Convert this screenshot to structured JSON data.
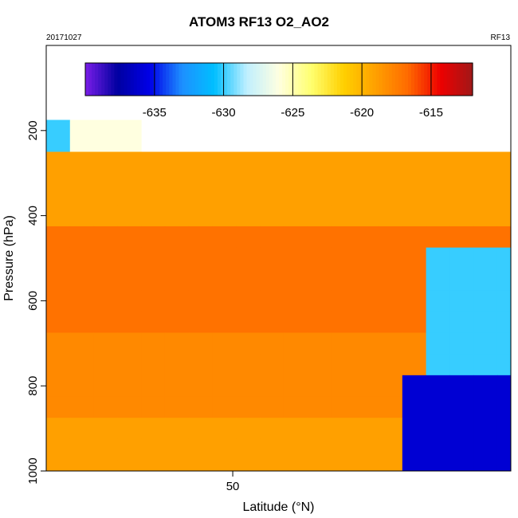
{
  "chart_data": {
    "type": "heatmap",
    "title": "ATOM3 RF13 O2_AO2",
    "date_label": "20171027",
    "flight_label": "RF13",
    "xlabel": "Latitude (°N)",
    "ylabel": "Pressure (hPa)",
    "x_ticks": [
      50
    ],
    "y_ticks": [
      200,
      400,
      600,
      800,
      1000
    ],
    "xlim": [
      44.5,
      58.2
    ],
    "ylim": [
      1000,
      0
    ],
    "log_scale": false,
    "grid": false,
    "colorbar": {
      "range": [
        -640,
        -612
      ],
      "ticks": [
        -635,
        -630,
        -625,
        -620,
        -615
      ],
      "position": "top",
      "colors": [
        "#7a1ee8",
        "#0000a0",
        "#0000e8",
        "#1e90ff",
        "#00bfff",
        "#bfefff",
        "#ffffe0",
        "#ffff70",
        "#ffd000",
        "#ffa000",
        "#ff6a00",
        "#ee0000",
        "#a01818"
      ]
    },
    "layers_hPa": [
      200,
      300,
      350,
      400,
      450,
      500,
      550,
      600,
      650,
      700,
      750,
      800,
      850,
      900,
      950,
      1000
    ],
    "lat_bins_deg": [
      44.5,
      45.2,
      45.9,
      46.6,
      47.3,
      48.0,
      48.7,
      49.4,
      50.1,
      50.8,
      51.5,
      52.2,
      52.9,
      53.6,
      54.3,
      55.0,
      55.7,
      56.4,
      57.1,
      57.8
    ],
    "z_description_units": "O2_AO2 value (per mil)",
    "regions": [
      {
        "lat": [
          44.5,
          45.4
        ],
        "p": [
          175,
          225
        ],
        "value": -630
      },
      {
        "lat": [
          45.4,
          47.6
        ],
        "p": [
          175,
          225
        ],
        "value": -626
      },
      {
        "lat": [
          44.5,
          49.0
        ],
        "p": [
          225,
          275
        ],
        "value": -623
      },
      {
        "lat": [
          51.1,
          56.0
        ],
        "p": [
          225,
          275
        ],
        "value": -626
      },
      {
        "lat": [
          44.5,
          58.2
        ],
        "p": [
          275,
          420
        ],
        "value": -619
      },
      {
        "lat": [
          44.5,
          58.2
        ],
        "p": [
          420,
          700
        ],
        "value": -617
      },
      {
        "lat": [
          44.5,
          58.2
        ],
        "p": [
          700,
          900
        ],
        "value": -618
      },
      {
        "lat": [
          44.5,
          58.2
        ],
        "p": [
          900,
          1000
        ],
        "value": -619
      },
      {
        "lat": [
          55.5,
          58.2
        ],
        "p": [
          500,
          800
        ],
        "value": -630
      },
      {
        "lat": [
          55.0,
          58.2
        ],
        "p": [
          800,
          1000
        ],
        "value": -636
      }
    ]
  }
}
